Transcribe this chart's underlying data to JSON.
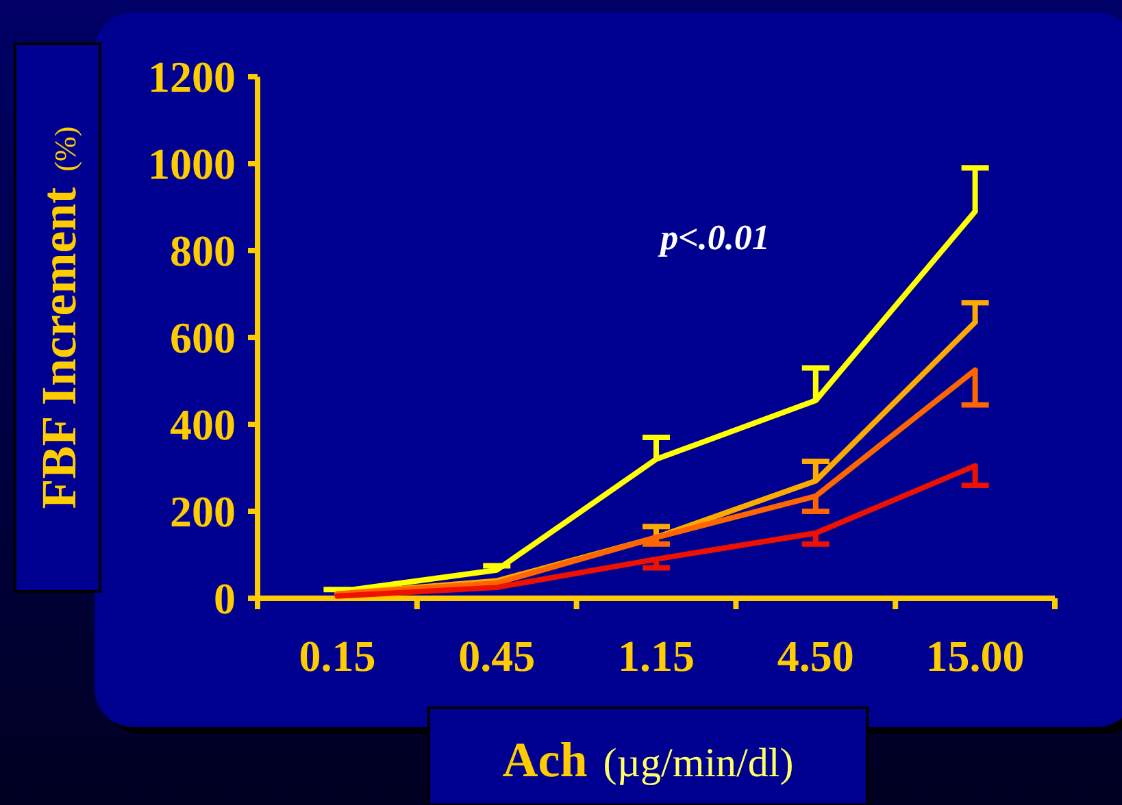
{
  "chart_data": {
    "type": "line",
    "xlabel": "Ach (µg/min/dl)",
    "ylabel": "FBF Increment (%)",
    "categories": [
      "0.15",
      "0.45",
      "1.15",
      "4.50",
      "15.00"
    ],
    "ylim": [
      0,
      1200
    ],
    "yticks": [
      0,
      200,
      400,
      600,
      800,
      1000,
      1200
    ],
    "grid": false,
    "marker": "none",
    "line_style": "solid",
    "annotations": [
      "p<.0.01"
    ],
    "series": [
      {
        "color": "#ffff00",
        "values": [
          15,
          65,
          320,
          455,
          890
        ],
        "errors": [
          [
            15,
            20
          ],
          [
            65,
            75
          ],
          [
            320,
            370
          ],
          [
            455,
            530
          ],
          [
            890,
            990
          ]
        ]
      },
      {
        "color": "#ffaa00",
        "values": [
          10,
          40,
          140,
          270,
          635
        ],
        "errors": [
          null,
          null,
          [
            140,
            165
          ],
          [
            270,
            315
          ],
          [
            635,
            680
          ]
        ]
      },
      {
        "color": "#ff6600",
        "values": [
          10,
          35,
          140,
          235,
          525
        ],
        "errors": [
          null,
          null,
          [
            125,
            140
          ],
          [
            200,
            235
          ],
          [
            445,
            525
          ]
        ]
      },
      {
        "color": "#ee1100",
        "values": [
          5,
          25,
          90,
          150,
          305
        ],
        "errors": [
          null,
          null,
          [
            70,
            90
          ],
          [
            125,
            150
          ],
          [
            260,
            305
          ]
        ]
      }
    ]
  }
}
